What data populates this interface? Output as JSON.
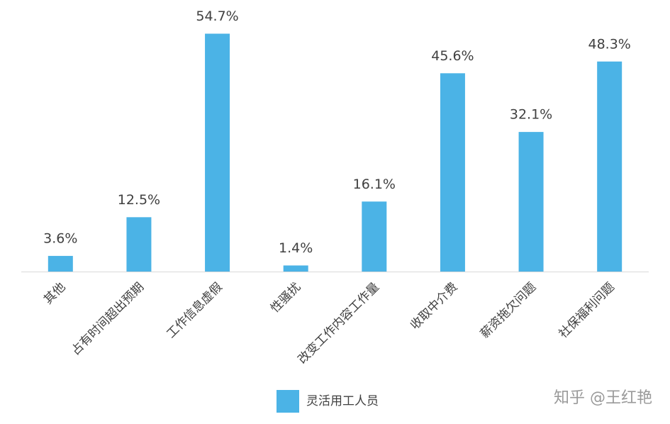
{
  "chart_data": {
    "type": "bar",
    "categories": [
      "其他",
      "占有时间超出预期",
      "工作信息虚假",
      "性骚扰",
      "改变工作内容工作量",
      "收取中介费",
      "薪资拖欠问题",
      "社保福利问题"
    ],
    "series": [
      {
        "name": "灵活用工人员",
        "color": "#4bb3e6",
        "values": [
          3.6,
          12.5,
          54.7,
          1.4,
          16.1,
          45.6,
          32.1,
          48.3
        ],
        "value_labels": [
          "3.6%",
          "12.5%",
          "54.7%",
          "1.4%",
          "16.1%",
          "45.6%",
          "32.1%",
          "48.3%"
        ]
      }
    ],
    "ylim": [
      0,
      60
    ],
    "legend": "bottom",
    "watermark": "知乎 @王红艳"
  }
}
